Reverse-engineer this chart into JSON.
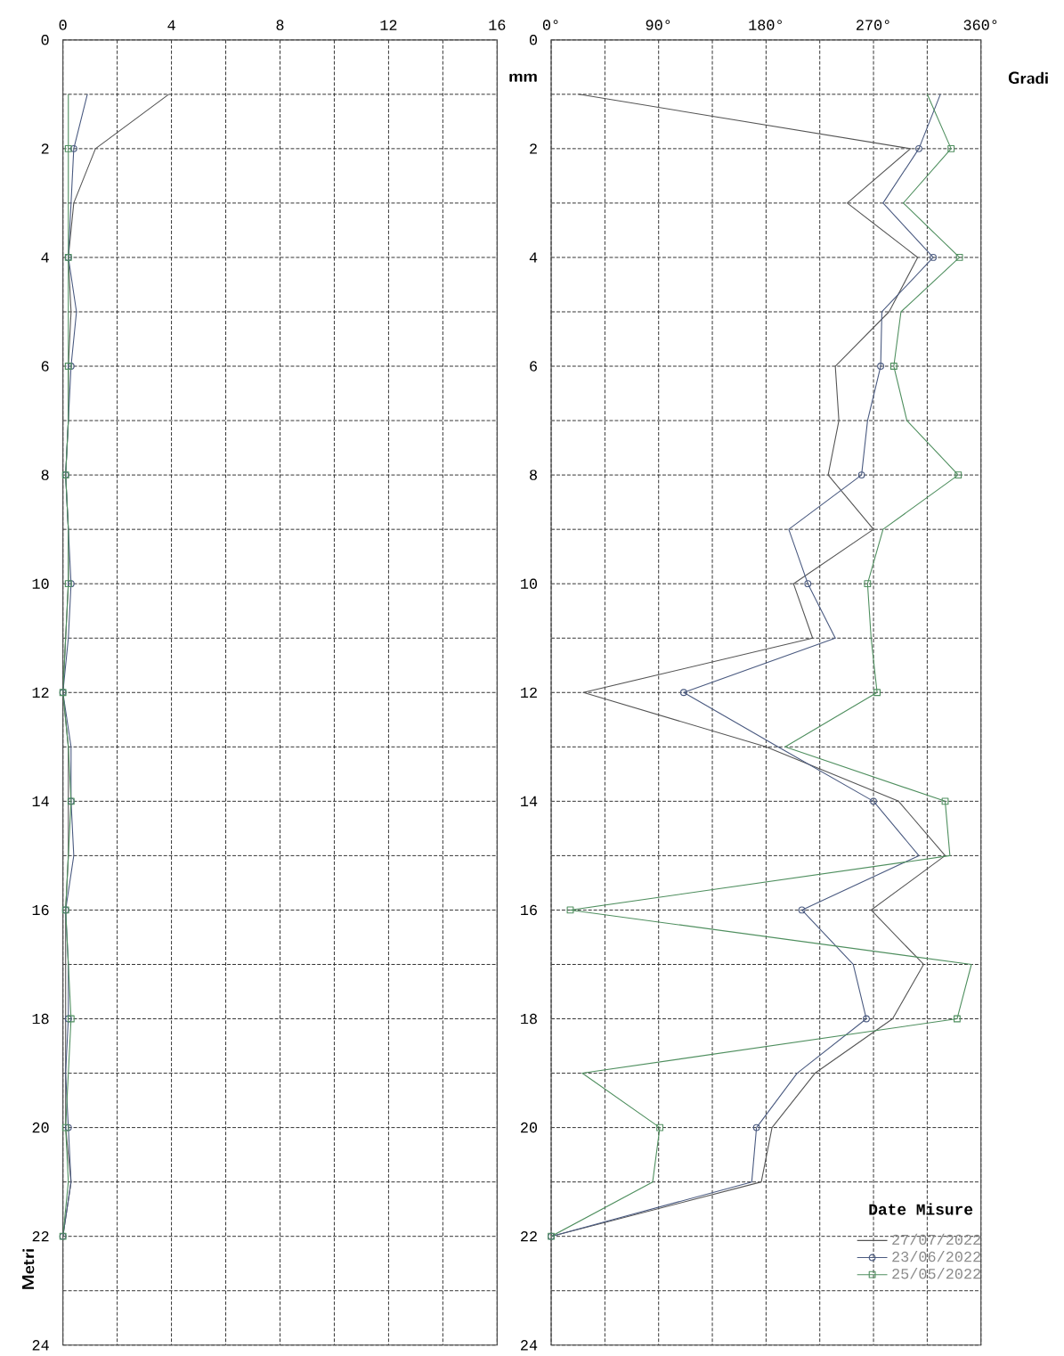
{
  "chart_data": [
    {
      "type": "line",
      "orientation": "horizontal",
      "xlabel": "mm",
      "ylabel": "Metri",
      "grid": true,
      "xlim": [
        0,
        16
      ],
      "xticks": [
        0,
        {
          "value": 2,
          "label": null
        },
        4,
        {
          "value": 6,
          "label": null
        },
        8,
        {
          "value": 10,
          "label": null
        },
        12,
        {
          "value": 14,
          "label": null
        },
        16
      ],
      "ylim": [
        24,
        0
      ],
      "yticks": [
        0,
        {
          "value": 1,
          "label": null
        },
        2,
        {
          "value": 3,
          "label": null
        },
        4,
        {
          "value": 5,
          "label": null
        },
        6,
        {
          "value": 7,
          "label": null
        },
        8,
        {
          "value": 9,
          "label": null
        },
        10,
        {
          "value": 11,
          "label": null
        },
        12,
        {
          "value": 13,
          "label": null
        },
        14,
        {
          "value": 15,
          "label": null
        },
        16,
        {
          "value": 17,
          "label": null
        },
        18,
        {
          "value": 19,
          "label": null
        },
        20,
        {
          "value": 21,
          "label": null
        },
        22,
        {
          "value": 23,
          "label": null
        },
        24
      ],
      "x": [
        1,
        2,
        3,
        4,
        5,
        6,
        7,
        8,
        9,
        10,
        11,
        12,
        13,
        14,
        15,
        16,
        17,
        18,
        19,
        20,
        21,
        22
      ],
      "series": [
        {
          "color": "#555555",
          "marker": "none",
          "values": [
            3.9,
            1.2,
            0.4,
            0.2,
            0.3,
            0.2,
            0.2,
            0.1,
            0.2,
            0.2,
            0.1,
            0.0,
            0.2,
            0.2,
            0.2,
            0.1,
            0.1,
            0.1,
            0.1,
            0.1,
            0.3,
            0.0
          ]
        },
        {
          "color": "#4a5a80",
          "marker": "circle",
          "values": [
            0.9,
            0.4,
            0.3,
            0.2,
            0.5,
            0.3,
            0.2,
            0.1,
            0.2,
            0.3,
            0.2,
            0.0,
            0.3,
            0.3,
            0.4,
            0.1,
            0.2,
            0.2,
            0.1,
            0.2,
            0.3,
            0.0
          ]
        },
        {
          "color": "#4f8f5f",
          "marker": "square",
          "values": [
            0.2,
            0.2,
            0.2,
            0.2,
            0.2,
            0.2,
            0.2,
            0.1,
            0.2,
            0.2,
            0.1,
            0.0,
            0.2,
            0.3,
            0.2,
            0.1,
            0.2,
            0.3,
            0.2,
            0.1,
            0.2,
            0.0
          ]
        }
      ]
    },
    {
      "type": "line",
      "orientation": "horizontal",
      "xlabel": "Gradi",
      "grid": true,
      "legend": "bottom right",
      "legend_title": "Date Misure",
      "xlim": [
        0,
        360
      ],
      "xticks": [
        {
          "value": 0,
          "label": "0°"
        },
        {
          "value": 45,
          "label": null
        },
        {
          "value": 90,
          "label": "90°"
        },
        {
          "value": 135,
          "label": null
        },
        {
          "value": 180,
          "label": "180°"
        },
        {
          "value": 225,
          "label": null
        },
        {
          "value": 270,
          "label": "270°"
        },
        {
          "value": 315,
          "label": null
        },
        {
          "value": 360,
          "label": "360°"
        }
      ],
      "ylim": [
        24,
        0
      ],
      "yticks": [
        0,
        {
          "value": 1,
          "label": null
        },
        2,
        {
          "value": 3,
          "label": null
        },
        4,
        {
          "value": 5,
          "label": null
        },
        6,
        {
          "value": 7,
          "label": null
        },
        8,
        {
          "value": 9,
          "label": null
        },
        10,
        {
          "value": 11,
          "label": null
        },
        12,
        {
          "value": 13,
          "label": null
        },
        14,
        {
          "value": 15,
          "label": null
        },
        16,
        {
          "value": 17,
          "label": null
        },
        18,
        {
          "value": 19,
          "label": null
        },
        20,
        {
          "value": 21,
          "label": null
        },
        22,
        {
          "value": 23,
          "label": null
        },
        24
      ],
      "x": [
        1,
        2,
        3,
        4,
        5,
        6,
        7,
        8,
        9,
        10,
        11,
        12,
        13,
        14,
        15,
        16,
        17,
        18,
        19,
        20,
        21,
        22
      ],
      "series": [
        {
          "name": "27/07/2022",
          "color": "#555555",
          "marker": "none",
          "values": [
            23,
            301,
            248,
            307,
            283,
            238,
            241,
            232,
            270,
            203,
            219,
            27,
            180,
            291,
            330,
            268,
            312,
            286,
            221,
            185,
            176,
            0
          ]
        },
        {
          "name": "23/06/2022",
          "color": "#4a5a80",
          "marker": "circle",
          "values": [
            326,
            308,
            278,
            320,
            277,
            276,
            265,
            260,
            199,
            215,
            238,
            111,
            190,
            270,
            308,
            210,
            253,
            264,
            206,
            172,
            168,
            0
          ]
        },
        {
          "name": "25/05/2022",
          "color": "#4f8f5f",
          "marker": "square",
          "values": [
            315,
            335,
            295,
            342,
            293,
            287,
            298,
            341,
            278,
            265,
            268,
            273,
            196,
            330,
            334,
            16,
            352,
            340,
            26,
            91,
            85,
            0
          ]
        }
      ]
    }
  ]
}
